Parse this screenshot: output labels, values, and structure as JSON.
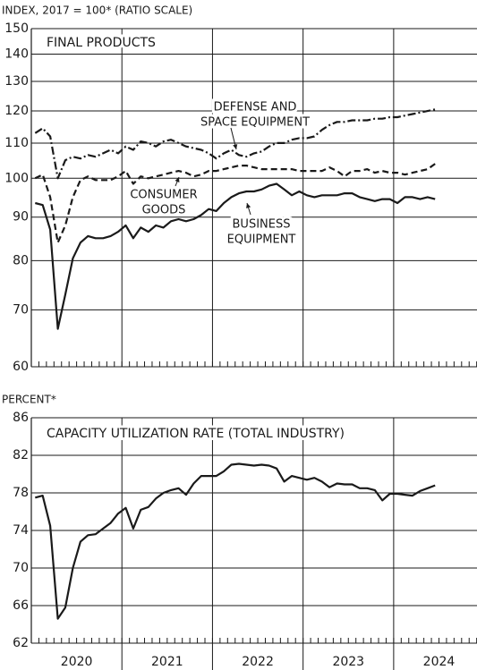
{
  "chart_data": [
    {
      "type": "line",
      "axis_label": "INDEX, 2017 = 100* (RATIO SCALE)",
      "title": "FINAL PRODUCTS",
      "log_scale": true,
      "grid": true,
      "xlim": [
        2020,
        2024.92
      ],
      "xticks": [
        2021,
        2022,
        2023,
        2024
      ],
      "x": [
        2020.042,
        2020.125,
        2020.208,
        2020.292,
        2020.375,
        2020.458,
        2020.542,
        2020.625,
        2020.708,
        2020.792,
        2020.875,
        2020.958,
        2021.042,
        2021.125,
        2021.208,
        2021.292,
        2021.375,
        2021.458,
        2021.542,
        2021.625,
        2021.708,
        2021.792,
        2021.875,
        2021.958,
        2022.042,
        2022.125,
        2022.208,
        2022.292,
        2022.375,
        2022.458,
        2022.542,
        2022.625,
        2022.708,
        2022.792,
        2022.875,
        2022.958,
        2023.042,
        2023.125,
        2023.208,
        2023.292,
        2023.375,
        2023.458,
        2023.542,
        2023.625,
        2023.708,
        2023.792,
        2023.875,
        2023.958,
        2024.042,
        2024.125,
        2024.208,
        2024.292,
        2024.375,
        2024.458
      ],
      "ylim": [
        60,
        150
      ],
      "yticks": [
        60,
        70,
        80,
        90,
        100,
        110,
        120,
        130,
        140,
        150
      ],
      "series": [
        {
          "name": [
            "DEFENSE AND",
            "SPACE EQUIPMENT"
          ],
          "color": "#1a1a1a",
          "dash": "9 3 2 3",
          "values": [
            113,
            114.5,
            112,
            100,
            105,
            106,
            105.5,
            106.5,
            106,
            107,
            108,
            107,
            109,
            108,
            110.5,
            110,
            109,
            110.5,
            111,
            110,
            109,
            108.5,
            108,
            107,
            105.5,
            107,
            108,
            106.5,
            106,
            107,
            107.5,
            109,
            110,
            110,
            111,
            111.5,
            111.5,
            112,
            114,
            115.5,
            116.5,
            116.5,
            117,
            117,
            117,
            117.5,
            117.5,
            118,
            118,
            118.5,
            119,
            119.5,
            120,
            120.5
          ]
        },
        {
          "name": [
            "CONSUMER",
            "GOODS"
          ],
          "color": "#1a1a1a",
          "dash": "7 4",
          "values": [
            100,
            101,
            95,
            84,
            88,
            95,
            99.5,
            100.5,
            99.5,
            99.5,
            99.5,
            100.5,
            102,
            98.5,
            100.5,
            100,
            100.5,
            101,
            101.5,
            102,
            101.5,
            100.5,
            101,
            102,
            102,
            102.5,
            103,
            103.5,
            103.5,
            103,
            102.5,
            102.5,
            102.5,
            102.5,
            102.5,
            102,
            102,
            102,
            102,
            103,
            102,
            100.5,
            102,
            102,
            102.5,
            101.5,
            102,
            101.5,
            101.5,
            101,
            101.5,
            102,
            102.5,
            104
          ]
        },
        {
          "name": [
            "BUSINESS",
            "EQUIPMENT"
          ],
          "color": "#1a1a1a",
          "dash": "",
          "values": [
            93.5,
            93,
            87,
            66.5,
            73,
            80.5,
            84,
            85.5,
            85,
            85,
            85.5,
            86.5,
            88,
            85,
            87.5,
            86.5,
            88,
            87.5,
            89,
            89.5,
            89,
            89.5,
            90.5,
            92,
            91.5,
            93.5,
            95,
            96,
            96.5,
            96.5,
            97,
            98,
            98.5,
            97,
            95.5,
            96.5,
            95.5,
            95,
            95.5,
            95.5,
            95.5,
            96,
            96,
            95,
            94.5,
            94,
            94.5,
            94.5,
            93.5,
            95,
            95,
            94.5,
            95,
            94.5
          ]
        }
      ]
    },
    {
      "type": "line",
      "axis_label": "PERCENT*",
      "title": "CAPACITY UTILIZATION RATE (TOTAL INDUSTRY)",
      "log_scale": false,
      "grid": true,
      "xlim": [
        2020,
        2024.92
      ],
      "xticks": [
        2021,
        2022,
        2023,
        2024
      ],
      "year_labels": [
        "2020",
        "2021",
        "2022",
        "2023",
        "2024"
      ],
      "x": [
        2020.042,
        2020.125,
        2020.208,
        2020.292,
        2020.375,
        2020.458,
        2020.542,
        2020.625,
        2020.708,
        2020.792,
        2020.875,
        2020.958,
        2021.042,
        2021.125,
        2021.208,
        2021.292,
        2021.375,
        2021.458,
        2021.542,
        2021.625,
        2021.708,
        2021.792,
        2021.875,
        2021.958,
        2022.042,
        2022.125,
        2022.208,
        2022.292,
        2022.375,
        2022.458,
        2022.542,
        2022.625,
        2022.708,
        2022.792,
        2022.875,
        2022.958,
        2023.042,
        2023.125,
        2023.208,
        2023.292,
        2023.375,
        2023.458,
        2023.542,
        2023.625,
        2023.708,
        2023.792,
        2023.875,
        2023.958,
        2024.042,
        2024.125,
        2024.208,
        2024.292,
        2024.375,
        2024.458
      ],
      "ylim": [
        62,
        86
      ],
      "yticks": [
        62,
        66,
        70,
        74,
        78,
        82,
        86
      ],
      "series": [
        {
          "color": "#1a1a1a",
          "dash": "",
          "values": [
            77.5,
            77.7,
            74.5,
            64.6,
            65.8,
            70,
            72.8,
            73.5,
            73.6,
            74.2,
            74.8,
            75.8,
            76.4,
            74.2,
            76.2,
            76.5,
            77.4,
            78,
            78.3,
            78.5,
            77.8,
            79,
            79.8,
            79.8,
            79.8,
            80.3,
            81,
            81.1,
            81,
            80.9,
            81,
            80.9,
            80.6,
            79.2,
            79.8,
            79.6,
            79.4,
            79.6,
            79.2,
            78.6,
            79,
            78.9,
            78.9,
            78.5,
            78.5,
            78.3,
            77.2,
            77.9,
            77.9,
            77.8,
            77.7,
            78.2,
            78.5,
            78.8
          ]
        }
      ]
    }
  ]
}
